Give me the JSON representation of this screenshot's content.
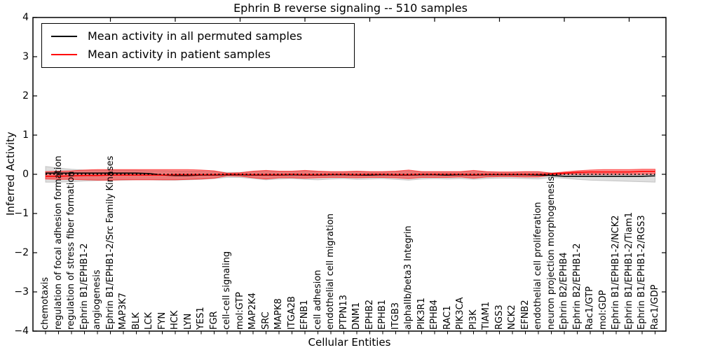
{
  "chart_data": {
    "type": "line",
    "title": "Ephrin B reverse signaling -- 510 samples",
    "xlabel": "Cellular Entities",
    "ylabel": "Inferred Activity",
    "ylim": [
      -4,
      4
    ],
    "ytick_labels": [
      "4",
      "3",
      "2",
      "1",
      "0",
      "−1",
      "−2",
      "−3",
      "−4"
    ],
    "ytick_values": [
      4,
      3,
      2,
      1,
      0,
      -1,
      -2,
      -3,
      -4
    ],
    "grid": false,
    "legend_position": "upper left",
    "categories": [
      "chemotaxis",
      "regulation of focal adhesion formation",
      "regulation of stress fiber formation",
      "Ephrin B1/EPHB1-2",
      "angiogenesis",
      "Ephrin B1/EPHB1-2/Src Family Kinases",
      "MAP3K7",
      "BLK",
      "LCK",
      "FYN",
      "HCK",
      "LYN",
      "YES1",
      "FGR",
      "cell-cell signaling",
      "mol:GTP",
      "MAP2K4",
      "SRC",
      "MAPK8",
      "ITGA2B",
      "EFNB1",
      "cell adhesion",
      "endothelial cell migration",
      "PTPN13",
      "DNM1",
      "EPHB2",
      "EPHB1",
      "ITGB3",
      "alphaIIb/beta3 Integrin",
      "PIK3R1",
      "EPHB4",
      "RAC1",
      "PIK3CA",
      "PI3K",
      "TIAM1",
      "RGS3",
      "NCK2",
      "EFNB2",
      "endothelial cell proliferation",
      "neuron projection morphogenesis",
      "Ephrin B2/EPHB4",
      "Ephrin B2/EPHB1-2",
      "Rac1/GTP",
      "mol:GDP",
      "Ephrin B1/EPHB1-2/NCK2",
      "Ephrin B1/EPHB1-2/Tiam1",
      "Ephrin B1/EPHB1-2/RGS3",
      "Rac1/GDP"
    ],
    "series": [
      {
        "name": "Mean activity in all permuted samples",
        "color": "#000000",
        "values": [
          0.03,
          0.03,
          0.03,
          0.03,
          0.03,
          0.03,
          0.03,
          0.03,
          0.02,
          -0.02,
          -0.03,
          -0.03,
          -0.02,
          -0.02,
          -0.01,
          -0.01,
          -0.02,
          -0.02,
          -0.02,
          -0.01,
          -0.02,
          -0.02,
          -0.01,
          -0.01,
          -0.02,
          -0.02,
          -0.01,
          -0.02,
          -0.02,
          -0.01,
          -0.01,
          -0.02,
          -0.01,
          -0.02,
          -0.01,
          -0.01,
          -0.01,
          -0.01,
          -0.02,
          -0.03,
          -0.05,
          -0.05,
          -0.05,
          -0.05,
          -0.05,
          -0.05,
          -0.05,
          -0.04
        ]
      },
      {
        "name": "Mean activity in patient samples",
        "color": "#ff0000",
        "values": [
          -0.05,
          -0.05,
          -0.04,
          -0.03,
          -0.03,
          -0.02,
          -0.02,
          -0.02,
          -0.02,
          -0.02,
          -0.01,
          -0.01,
          -0.01,
          -0.01,
          0,
          0,
          -0.01,
          -0.01,
          -0.01,
          0,
          -0.01,
          -0.01,
          0,
          0,
          -0.01,
          0,
          0,
          -0.01,
          -0.01,
          0,
          0,
          0,
          0,
          -0.01,
          0,
          0,
          0,
          0,
          0,
          0.01,
          0.03,
          0.05,
          0.06,
          0.06,
          0.06,
          0.06,
          0.07,
          0.07
        ]
      }
    ],
    "bands": [
      {
        "name": "permuted samples std band",
        "color": "#999999",
        "opacity": 0.32,
        "upper": [
          0.2,
          0.16,
          0.13,
          0.11,
          0.1,
          0.1,
          0.1,
          0.1,
          0.09,
          0.09,
          0.08,
          0.08,
          0.08,
          0.07,
          0.05,
          0.05,
          0.07,
          0.08,
          0.07,
          0.07,
          0.08,
          0.07,
          0.06,
          0.06,
          0.07,
          0.06,
          0.06,
          0.07,
          0.08,
          0.06,
          0.06,
          0.06,
          0.06,
          0.07,
          0.06,
          0.05,
          0.05,
          0.06,
          0.06,
          0.04,
          0.03,
          0.02,
          0.01,
          0.01,
          0.01,
          0,
          0,
          0
        ],
        "lower": [
          -0.2,
          -0.2,
          -0.19,
          -0.17,
          -0.16,
          -0.15,
          -0.15,
          -0.14,
          -0.14,
          -0.15,
          -0.15,
          -0.14,
          -0.13,
          -0.11,
          -0.08,
          -0.08,
          -0.11,
          -0.14,
          -0.12,
          -0.11,
          -0.13,
          -0.14,
          -0.12,
          -0.11,
          -0.13,
          -0.12,
          -0.11,
          -0.13,
          -0.15,
          -0.12,
          -0.11,
          -0.12,
          -0.11,
          -0.13,
          -0.11,
          -0.1,
          -0.1,
          -0.11,
          -0.12,
          -0.08,
          -0.1,
          -0.13,
          -0.15,
          -0.16,
          -0.17,
          -0.18,
          -0.19,
          -0.2
        ]
      },
      {
        "name": "patient samples std band",
        "color": "#ff0000",
        "opacity": 0.45,
        "upper": [
          0.07,
          0.08,
          0.09,
          0.11,
          0.12,
          0.12,
          0.12,
          0.12,
          0.12,
          0.12,
          0.12,
          0.12,
          0.11,
          0.09,
          0.03,
          0.04,
          0.08,
          0.1,
          0.08,
          0.08,
          0.1,
          0.08,
          0.07,
          0.07,
          0.08,
          0.07,
          0.07,
          0.08,
          0.11,
          0.07,
          0.07,
          0.07,
          0.07,
          0.1,
          0.07,
          0.06,
          0.06,
          0.07,
          0.07,
          0.03,
          0.06,
          0.09,
          0.11,
          0.12,
          0.12,
          0.12,
          0.13,
          0.13
        ],
        "lower": [
          -0.12,
          -0.13,
          -0.13,
          -0.14,
          -0.15,
          -0.15,
          -0.14,
          -0.14,
          -0.14,
          -0.14,
          -0.14,
          -0.13,
          -0.12,
          -0.1,
          -0.04,
          -0.05,
          -0.09,
          -0.12,
          -0.09,
          -0.09,
          -0.1,
          -0.09,
          -0.08,
          -0.08,
          -0.09,
          -0.08,
          -0.08,
          -0.09,
          -0.11,
          -0.08,
          -0.08,
          -0.08,
          -0.07,
          -0.1,
          -0.07,
          -0.06,
          -0.06,
          -0.07,
          -0.07,
          -0.02,
          0,
          0,
          0,
          0,
          0,
          0,
          0,
          0.01
        ]
      }
    ],
    "zero_line": {
      "y": 0,
      "style": "dotted",
      "color": "#000000"
    }
  }
}
